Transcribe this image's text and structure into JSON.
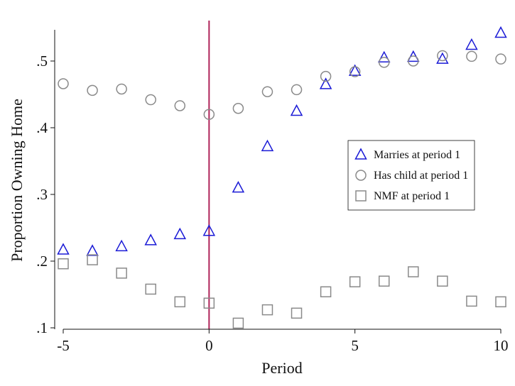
{
  "chart_data": {
    "type": "scatter",
    "xlabel": "Period",
    "ylabel": "Proportion Owning Home",
    "xlim": [
      -5,
      10
    ],
    "ylim": [
      0.1,
      0.54
    ],
    "x_ticks": [
      -5,
      0,
      5,
      10
    ],
    "x_tick_labels": [
      "-5",
      "0",
      "5",
      "10"
    ],
    "y_ticks": [
      0.1,
      0.2,
      0.3,
      0.4,
      0.5
    ],
    "y_tick_labels": [
      ".1",
      ".2",
      ".3",
      ".4",
      ".5"
    ],
    "grid": false,
    "legend_position": "right",
    "reference_line": {
      "x": 0,
      "color": "#b0245a"
    },
    "series": [
      {
        "name": "Marries at period 1",
        "marker": "triangle",
        "color": "#1a1ad6",
        "x": [
          -5,
          -4,
          -3,
          -2,
          -1,
          0,
          1,
          2,
          3,
          4,
          5,
          6,
          7,
          8,
          9,
          10
        ],
        "y": [
          0.217,
          0.215,
          0.222,
          0.231,
          0.24,
          0.245,
          0.31,
          0.372,
          0.425,
          0.465,
          0.485,
          0.505,
          0.506,
          0.503,
          0.524,
          0.542
        ]
      },
      {
        "name": "Has child at period 1",
        "marker": "circle",
        "color": "#8a8a8a",
        "x": [
          -5,
          -4,
          -3,
          -2,
          -1,
          0,
          1,
          2,
          3,
          4,
          5,
          6,
          7,
          8,
          9,
          10
        ],
        "y": [
          0.466,
          0.456,
          0.458,
          0.442,
          0.433,
          0.42,
          0.429,
          0.454,
          0.457,
          0.477,
          0.484,
          0.498,
          0.5,
          0.508,
          0.507,
          0.503
        ]
      },
      {
        "name": "NMF at period 1",
        "marker": "square",
        "color": "#8a8a8a",
        "x": [
          -5,
          -4,
          -3,
          -2,
          -1,
          0,
          1,
          2,
          3,
          4,
          5,
          6,
          7,
          8,
          9,
          10
        ],
        "y": [
          0.196,
          0.202,
          0.182,
          0.158,
          0.139,
          0.137,
          0.107,
          0.127,
          0.122,
          0.154,
          0.169,
          0.17,
          0.184,
          0.17,
          0.14,
          0.139
        ]
      }
    ]
  }
}
